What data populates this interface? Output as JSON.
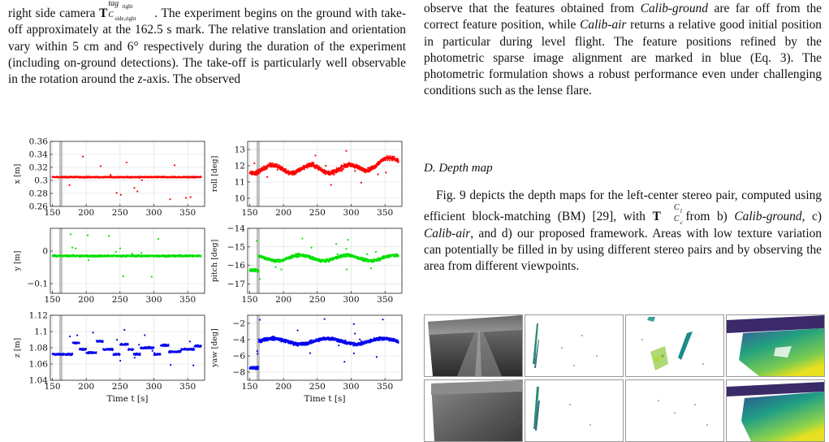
{
  "left_column": {
    "paragraph_1": [
      "right side camera ",
      "T",
      "tag",
      "right",
      "C",
      "side,right",
      ". The experiment begins on the ground with take-off approximately at the ",
      "162.5 s",
      " mark. The relative translation and orientation vary within ",
      "5 cm",
      " and ",
      "6°",
      " respectively during the duration of the experiment (including on-ground detections). The take-off is particularly well observable in the rotation around the ",
      "z",
      "-axis. The observed"
    ]
  },
  "right_column": {
    "paragraph_1": [
      "observe that the features obtained from ",
      "Calib-ground",
      " are far off from the correct feature position, while ",
      "Calib-air",
      " returns a relative good initial position in particular during level flight. The feature positions refined by the photometric sparse image alignment are marked in blue (Eq. 3). The photometric formulation shows a robust performance even under challenging conditions such as the lense flare."
    ],
    "section_heading": "D. Depth map",
    "paragraph_2": [
      "Fig. 9 depicts the depth maps for the left-center stereo pair, computed using efficient block-matching (BM) [29], with ",
      "T",
      "C",
      "l",
      "C",
      "c",
      " from b) ",
      "Calib-ground",
      ", c) ",
      "Calib-air",
      ", and d) our proposed framework. Areas with low texture variation can potentially be filled in by using different stereo pairs and by observing the area from different viewpoints."
    ]
  },
  "chart_data": [
    {
      "type": "scatter",
      "panel": "x",
      "ylabel": "x [m]",
      "xlabel": "",
      "color": "#ff0000",
      "xlim": [
        147,
        375
      ],
      "ylim": [
        0.26,
        0.36
      ],
      "x_ticks": [
        "150",
        "200",
        "250",
        "300",
        "350"
      ],
      "y_ticks": [
        "0.26",
        "0.28",
        "0.3",
        "0.32",
        "0.34",
        "0.36"
      ],
      "baseline": 0.305,
      "takeoff": 162.5
    },
    {
      "type": "scatter",
      "panel": "roll",
      "ylabel": "roll [deg]",
      "xlabel": "",
      "color": "#ff0000",
      "xlim": [
        147,
        375
      ],
      "ylim": [
        9.5,
        13.5
      ],
      "x_ticks": [
        "150",
        "200",
        "250",
        "300",
        "350"
      ],
      "y_ticks": [
        "10",
        "11",
        "12",
        "13"
      ],
      "baseline": 11.8,
      "takeoff": 162.5
    },
    {
      "type": "scatter",
      "panel": "y",
      "ylabel": "y [m]",
      "xlabel": "",
      "color": "#00e000",
      "xlim": [
        147,
        375
      ],
      "ylim": [
        -0.13,
        0.07
      ],
      "x_ticks": [
        "150",
        "200",
        "250",
        "300",
        "350"
      ],
      "y_ticks": [
        "-0.1",
        "0"
      ],
      "baseline": -0.015,
      "takeoff": 162.5
    },
    {
      "type": "scatter",
      "panel": "pitch",
      "ylabel": "pitch [deg]",
      "xlabel": "",
      "color": "#00e000",
      "xlim": [
        147,
        375
      ],
      "ylim": [
        -17.5,
        -14
      ],
      "x_ticks": [
        "150",
        "200",
        "250",
        "300",
        "350"
      ],
      "y_ticks": [
        "-17",
        "-16",
        "-15",
        "-14"
      ],
      "baseline": -15.6,
      "takeoff": 162.5
    },
    {
      "type": "scatter",
      "panel": "z",
      "ylabel": "z [m]",
      "xlabel": "Time t [s]",
      "color": "#0000ee",
      "xlim": [
        147,
        375
      ],
      "ylim": [
        1.04,
        1.12
      ],
      "x_ticks": [
        "150",
        "200",
        "250",
        "300",
        "350"
      ],
      "y_ticks": [
        "1.04",
        "1.06",
        "1.08",
        "1.1",
        "1.12"
      ],
      "baseline": 1.075,
      "takeoff": 162.5
    },
    {
      "type": "scatter",
      "panel": "yaw",
      "ylabel": "yaw [deg]",
      "xlabel": "Time t [s]",
      "color": "#0000ee",
      "xlim": [
        147,
        375
      ],
      "ylim": [
        -9,
        -1
      ],
      "x_ticks": [
        "150",
        "200",
        "250",
        "300",
        "350"
      ],
      "y_ticks": [
        "-8",
        "-6",
        "-4",
        "-2"
      ],
      "baseline": -4,
      "takeoff": 162.5
    }
  ]
}
